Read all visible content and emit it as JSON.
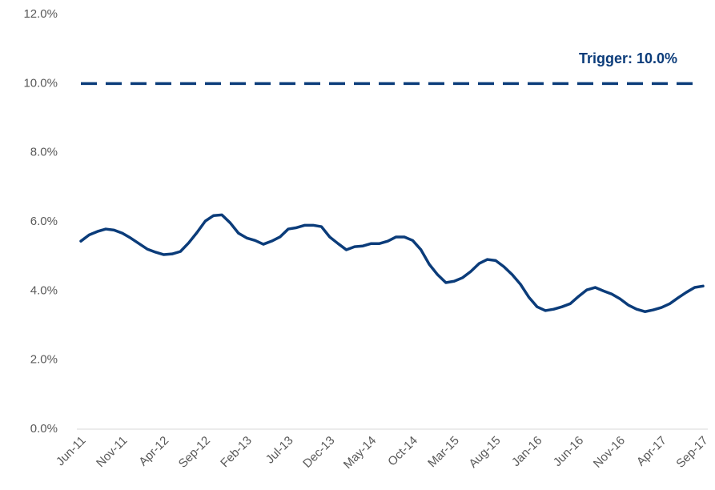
{
  "chart_data": {
    "type": "line",
    "color": "#0b3c7a",
    "categories": [
      "Jun-11",
      null,
      null,
      null,
      null,
      "Nov-11",
      null,
      null,
      null,
      null,
      "Apr-12",
      null,
      null,
      null,
      null,
      "Sep-12",
      null,
      null,
      null,
      null,
      "Feb-13",
      null,
      null,
      null,
      null,
      "Jul-13",
      null,
      null,
      null,
      null,
      "Dec-13",
      null,
      null,
      null,
      null,
      "May-14",
      null,
      null,
      null,
      null,
      "Oct-14",
      null,
      null,
      null,
      null,
      "Mar-15",
      null,
      null,
      null,
      null,
      "Aug-15",
      null,
      null,
      null,
      null,
      "Jan-16",
      null,
      null,
      null,
      null,
      "Jun-16",
      null,
      null,
      null,
      null,
      "Nov-16",
      null,
      null,
      null,
      null,
      "Apr-17",
      null,
      null,
      null,
      null,
      "Sep-17"
    ],
    "values": [
      5.44,
      5.62,
      5.72,
      5.79,
      5.76,
      5.67,
      5.53,
      5.37,
      5.21,
      5.12,
      5.05,
      5.07,
      5.14,
      5.39,
      5.69,
      6.02,
      6.18,
      6.2,
      5.97,
      5.67,
      5.53,
      5.46,
      5.35,
      5.44,
      5.56,
      5.79,
      5.83,
      5.9,
      5.9,
      5.86,
      5.56,
      5.37,
      5.19,
      5.28,
      5.3,
      5.37,
      5.37,
      5.44,
      5.56,
      5.56,
      5.46,
      5.19,
      4.77,
      4.47,
      4.24,
      4.28,
      4.38,
      4.56,
      4.79,
      4.91,
      4.88,
      4.7,
      4.47,
      4.19,
      3.82,
      3.54,
      3.43,
      3.47,
      3.54,
      3.63,
      3.84,
      4.03,
      4.1,
      4.0,
      3.91,
      3.77,
      3.59,
      3.47,
      3.4,
      3.45,
      3.52,
      3.63,
      3.8,
      3.96,
      4.1,
      4.14
    ],
    "ylim": [
      0,
      12
    ],
    "yticks": [
      {
        "value": 0,
        "label": "0.0%"
      },
      {
        "value": 2,
        "label": "2.0%"
      },
      {
        "value": 4,
        "label": "4.0%"
      },
      {
        "value": 6,
        "label": "6.0%"
      },
      {
        "value": 8,
        "label": "8.0%"
      },
      {
        "value": 10,
        "label": "10.0%"
      },
      {
        "value": 12,
        "label": "12.0%"
      }
    ],
    "reference_line": {
      "value": 10,
      "label": "Trigger: 10.0%",
      "color": "#0b3c7a",
      "dashed": true
    }
  }
}
